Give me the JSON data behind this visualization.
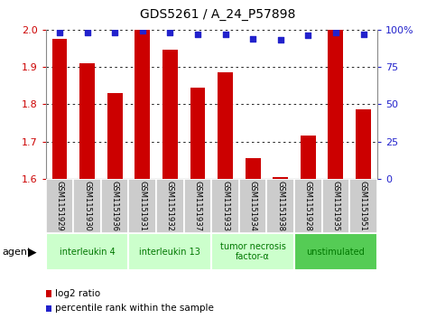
{
  "title": "GDS5261 / A_24_P57898",
  "samples": [
    "GSM1151929",
    "GSM1151930",
    "GSM1151936",
    "GSM1151931",
    "GSM1151932",
    "GSM1151937",
    "GSM1151933",
    "GSM1151934",
    "GSM1151938",
    "GSM1151928",
    "GSM1151935",
    "GSM1151951"
  ],
  "log2_ratio": [
    1.975,
    1.91,
    1.83,
    2.0,
    1.945,
    1.845,
    1.885,
    1.655,
    1.605,
    1.715,
    2.0,
    1.785
  ],
  "percentile": [
    98,
    98,
    98,
    99,
    98,
    97,
    97,
    94,
    93,
    96,
    98,
    97
  ],
  "ylim_left": [
    1.6,
    2.0
  ],
  "ylim_right": [
    0,
    100
  ],
  "yticks_left": [
    1.6,
    1.7,
    1.8,
    1.9,
    2.0
  ],
  "yticks_right": [
    0,
    25,
    50,
    75,
    100
  ],
  "groups": [
    {
      "label": "interleukin 4",
      "start": 0,
      "end": 3,
      "color": "#ccffcc"
    },
    {
      "label": "interleukin 13",
      "start": 3,
      "end": 6,
      "color": "#ccffcc"
    },
    {
      "label": "tumor necrosis\nfactor-α",
      "start": 6,
      "end": 9,
      "color": "#ccffcc"
    },
    {
      "label": "unstimulated",
      "start": 9,
      "end": 12,
      "color": "#55cc55"
    }
  ],
  "bar_color": "#cc0000",
  "dot_color": "#2222cc",
  "bar_width": 0.55,
  "background_color": "#ffffff",
  "tick_color_left": "#cc0000",
  "tick_color_right": "#2222cc",
  "sample_box_color": "#cccccc",
  "legend_log2": "log2 ratio",
  "legend_pct": "percentile rank within the sample",
  "agent_label": "agent"
}
